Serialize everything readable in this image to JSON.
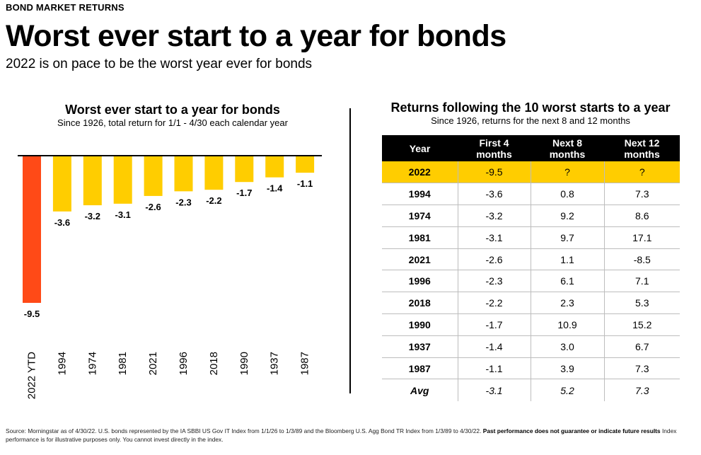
{
  "header": {
    "kicker": "BOND MARKET RETURNS",
    "headline": "Worst ever start to a year for bonds",
    "subhead": "2022 is on pace to be the worst year ever for bonds"
  },
  "colors": {
    "highlight_bar": "#ff4a17",
    "bar": "#ffcd00",
    "table_header_bg": "#000000",
    "highlight_row": "#ffcd00"
  },
  "chart_data": {
    "type": "bar",
    "title": "Worst ever start to a year for bonds",
    "subtitle": "Since 1926, total return for 1/1 - 4/30 each calendar year",
    "categories": [
      "2022 YTD",
      "1994",
      "1974",
      "1981",
      "2021",
      "1996",
      "2018",
      "1990",
      "1937",
      "1987"
    ],
    "values": [
      -9.5,
      -3.6,
      -3.2,
      -3.1,
      -2.6,
      -2.3,
      -2.2,
      -1.7,
      -1.4,
      -1.1
    ],
    "data_labels": [
      "-9.5",
      "-3.6",
      "-3.2",
      "-3.1",
      "-2.6",
      "-2.3",
      "-2.2",
      "-1.7",
      "-1.4",
      "-1.1"
    ],
    "highlight_index": 0,
    "ylim": [
      -9.5,
      0
    ],
    "grid": false,
    "xlabel": "",
    "ylabel": ""
  },
  "table": {
    "title": "Returns following the 10 worst starts to a year",
    "subtitle": "Since 1926, returns for the next 8 and 12 months",
    "columns": [
      "Year",
      "First 4 months",
      "Next 8 months",
      "Next 12 months"
    ],
    "rows": [
      [
        "2022",
        "-9.5",
        "?",
        "?"
      ],
      [
        "1994",
        "-3.6",
        "0.8",
        "7.3"
      ],
      [
        "1974",
        "-3.2",
        "9.2",
        "8.6"
      ],
      [
        "1981",
        "-3.1",
        "9.7",
        "17.1"
      ],
      [
        "2021",
        "-2.6",
        "1.1",
        "-8.5"
      ],
      [
        "1996",
        "-2.3",
        "6.1",
        "7.1"
      ],
      [
        "2018",
        "-2.2",
        "2.3",
        "5.3"
      ],
      [
        "1990",
        "-1.7",
        "10.9",
        "15.2"
      ],
      [
        "1937",
        "-1.4",
        "3.0",
        "6.7"
      ],
      [
        "1987",
        "-1.1",
        "3.9",
        "7.3"
      ],
      [
        "Avg",
        "-3.1",
        "5.2",
        "7.3"
      ]
    ]
  },
  "footer": {
    "source": "Source: Morningstar as of 4/30/22. U.S. bonds represented by the IA SBBI US Gov IT Index from 1/1/26 to 1/3/89 and the Bloomberg U.S. Agg Bond TR Index from 1/3/89 to 4/30/22.",
    "disclaimer_bold": "Past performance does not guarantee or indicate future results",
    "disclaimer_rest": "Index performance is for illustrative purposes only. You cannot invest directly in the index."
  }
}
